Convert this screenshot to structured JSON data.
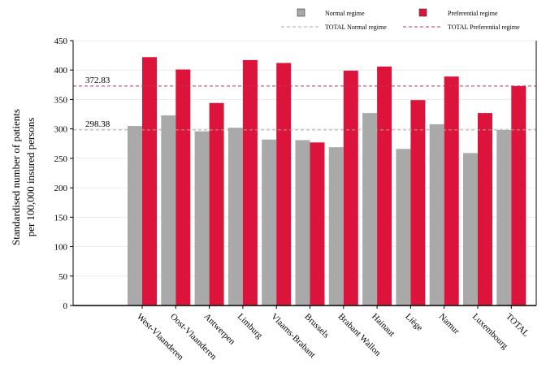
{
  "chart_data": {
    "type": "bar",
    "ylabel_lines": [
      "Standardised number of patients",
      "per 100,000 insured persons"
    ],
    "xlabel": "",
    "ylim": [
      0,
      450
    ],
    "yticks": [
      0,
      50,
      100,
      150,
      200,
      250,
      300,
      350,
      400,
      450
    ],
    "grid": true,
    "legend_position": "top",
    "categories": [
      "West-Vlaanderen",
      "Oost-Vlaanderen",
      "Antwerpen",
      "Limburg",
      "Vlaams-Brabant",
      "Brussels",
      "Brabant Wallon",
      "Hainaut",
      "Liège",
      "Namur",
      "Luxembourg",
      "TOTAL"
    ],
    "series": [
      {
        "name": "Normal regime",
        "color": "#a9a9a9",
        "values": [
          305,
          323,
          296,
          302,
          282,
          281,
          269,
          327,
          266,
          308,
          259,
          298.38
        ]
      },
      {
        "name": "Preferential regime",
        "color": "#dc143c",
        "values": [
          422,
          401,
          344,
          417,
          412,
          277,
          399,
          406,
          349,
          389,
          327,
          372.83
        ]
      }
    ],
    "reference_lines": [
      {
        "name": "TOTAL Normal regime",
        "value": 298.38,
        "label": "298.38",
        "color": "#a9a9a9"
      },
      {
        "name": "TOTAL Preferential regime",
        "value": 372.83,
        "label": "372.83",
        "color": "#c0325a"
      }
    ]
  }
}
